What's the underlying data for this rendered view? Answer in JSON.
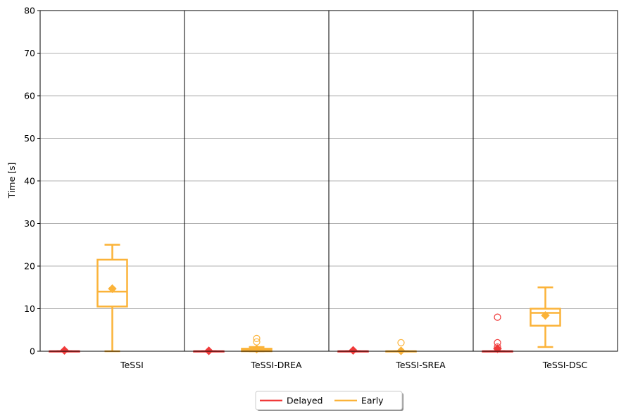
{
  "chart_data": {
    "type": "boxplot",
    "ylabel": "Time [s]",
    "xlabel": "",
    "ylim": [
      0,
      80
    ],
    "yticks": [
      0,
      10,
      20,
      30,
      40,
      50,
      60,
      70,
      80
    ],
    "grid": "y",
    "categories": [
      "TeSSI",
      "TeSSI-DREA",
      "TeSSI-SREA",
      "TeSSI-DSC"
    ],
    "legend_position": "bottom-center",
    "series": [
      {
        "name": "Delayed",
        "color": "#f03a3a",
        "boxes": [
          {
            "whislo": 0,
            "q1": 0,
            "med": 0,
            "q3": 0,
            "whishi": 0,
            "mean": 0.2,
            "fliers": []
          },
          {
            "whislo": 0,
            "q1": 0,
            "med": 0,
            "q3": 0,
            "whishi": 0,
            "mean": 0.1,
            "fliers": []
          },
          {
            "whislo": 0,
            "q1": 0,
            "med": 0,
            "q3": 0,
            "whishi": 0,
            "mean": 0.2,
            "fliers": []
          },
          {
            "whislo": 0,
            "q1": 0,
            "med": 0,
            "q3": 0,
            "whishi": 0,
            "mean": 0.6,
            "fliers": [
              8,
              2,
              1
            ]
          }
        ]
      },
      {
        "name": "Early",
        "color": "#fbb339",
        "boxes": [
          {
            "whislo": 0,
            "q1": 10.5,
            "med": 14,
            "q3": 21.5,
            "whishi": 25,
            "mean": 14.7,
            "fliers": []
          },
          {
            "whislo": 0,
            "q1": 0,
            "med": 0.3,
            "q3": 0.6,
            "whishi": 1,
            "mean": 0.5,
            "fliers": [
              3,
              2.2
            ]
          },
          {
            "whislo": 0,
            "q1": 0,
            "med": 0,
            "q3": 0,
            "whishi": 0,
            "mean": 0.1,
            "fliers": [
              2
            ]
          },
          {
            "whislo": 1,
            "q1": 6,
            "med": 9,
            "q3": 10,
            "whishi": 15,
            "mean": 8.4,
            "fliers": []
          }
        ]
      }
    ]
  }
}
